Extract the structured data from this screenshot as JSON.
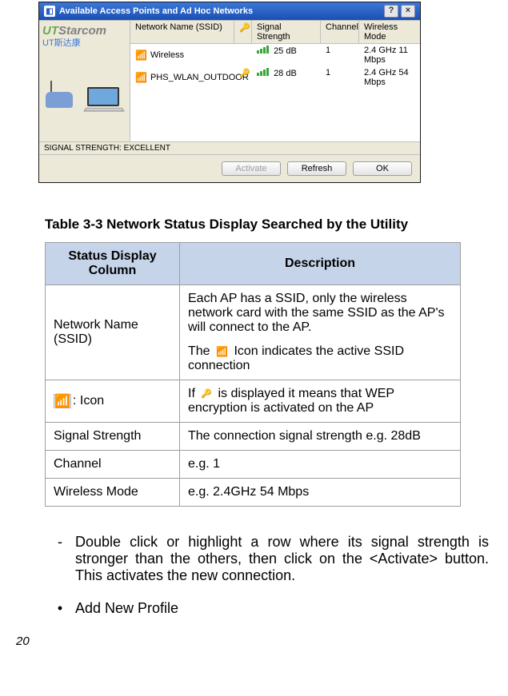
{
  "window": {
    "title": "Available Access Points and Ad Hoc Networks",
    "help_btn": "?",
    "close_btn": "×",
    "brand_first": "UT",
    "brand_rest": "Starcom",
    "brand_cn": "UT斯达康",
    "columns": {
      "ssid": "Network Name (SSID)",
      "key": "🔑",
      "signal": "Signal Strength",
      "channel": "Channel",
      "mode": "Wireless Mode"
    },
    "rows": [
      {
        "ssid": "Wireless",
        "key": "",
        "signal": "25 dB",
        "channel": "1",
        "mode": "2.4 GHz 11 Mbps"
      },
      {
        "ssid": "PHS_WLAN_OUTDOOR",
        "key": "🔑",
        "signal": "28 dB",
        "channel": "1",
        "mode": "2.4 GHz 54 Mbps"
      }
    ],
    "status_label": "SIGNAL STRENGTH:",
    "status_value": "EXCELLENT",
    "buttons": {
      "activate": "Activate",
      "refresh": "Refresh",
      "ok": "OK"
    }
  },
  "caption": "Table 3-3  Network Status Display Searched by the Utility",
  "table": {
    "head": {
      "col1": "Status Display Column",
      "col2": "Description"
    },
    "rows": {
      "r1_col1": "Network Name (SSID)",
      "r1_p1": "Each AP has a SSID, only the wireless network card with the same SSID as the AP's will connect to the AP.",
      "r1_p2a": "The",
      "r1_p2b": " Icon indicates the active SSID connection",
      "r2_col1": ": Icon",
      "r2a": "If ",
      "r2b": " is displayed it means that WEP encryption is activated on the AP",
      "r3_col1": "Signal Strength",
      "r3_col2": "The connection signal strength e.g. 28dB",
      "r4_col1": "Channel",
      "r4_col2": "e.g. 1",
      "r5_col1": "Wireless Mode",
      "r5_col2": "e.g. 2.4GHz 54 Mbps"
    }
  },
  "bullets": {
    "b1_marker": "-",
    "b1_text": "Double click or highlight a row where its signal strength is stronger than the others, then click on the <Activate> button. This activates the new connection.",
    "b2_marker": "•",
    "b2_text": "Add New Profile"
  },
  "page_number": "20",
  "colors": {
    "titlebar_top": "#3b78d8",
    "titlebar_bottom": "#1a4fb3",
    "panel_bg": "#ece9d8",
    "th_bg": "#c6d4ea",
    "signal_green": "#3aa63a",
    "brand_green": "#6aa84f",
    "brand_gray": "#808080",
    "brand_blue": "#3c78d8"
  }
}
